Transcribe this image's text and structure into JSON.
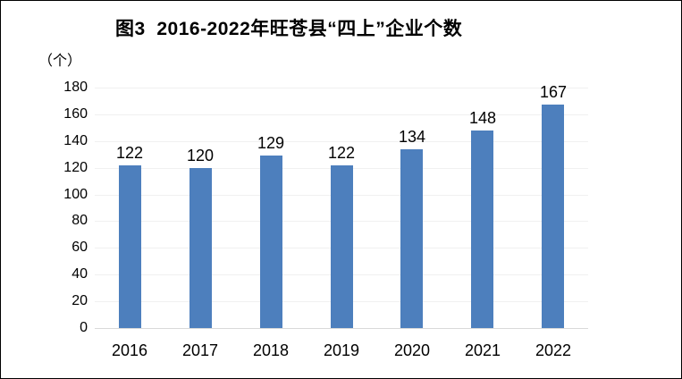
{
  "page": {
    "background": "#ffffff",
    "border_color": "#000000"
  },
  "chart_data": {
    "type": "bar",
    "title": "图3  2016-2022年旺苍县“四上”企业个数",
    "unit_label": "（个）",
    "categories": [
      "2016",
      "2017",
      "2018",
      "2019",
      "2020",
      "2021",
      "2022"
    ],
    "values": [
      122,
      120,
      129,
      122,
      134,
      148,
      167
    ],
    "xlabel": "",
    "ylabel": "（个）",
    "ylim": [
      0,
      180
    ],
    "yticks": [
      0,
      20,
      40,
      60,
      80,
      100,
      120,
      140,
      160,
      180
    ],
    "grid": true,
    "legend": "none",
    "data_labels": true,
    "bar_color": "#4D7FBD",
    "gridline_color": "#F0F0F0",
    "axis_line_color": "#D9D9D9",
    "text_color": "#000000"
  }
}
